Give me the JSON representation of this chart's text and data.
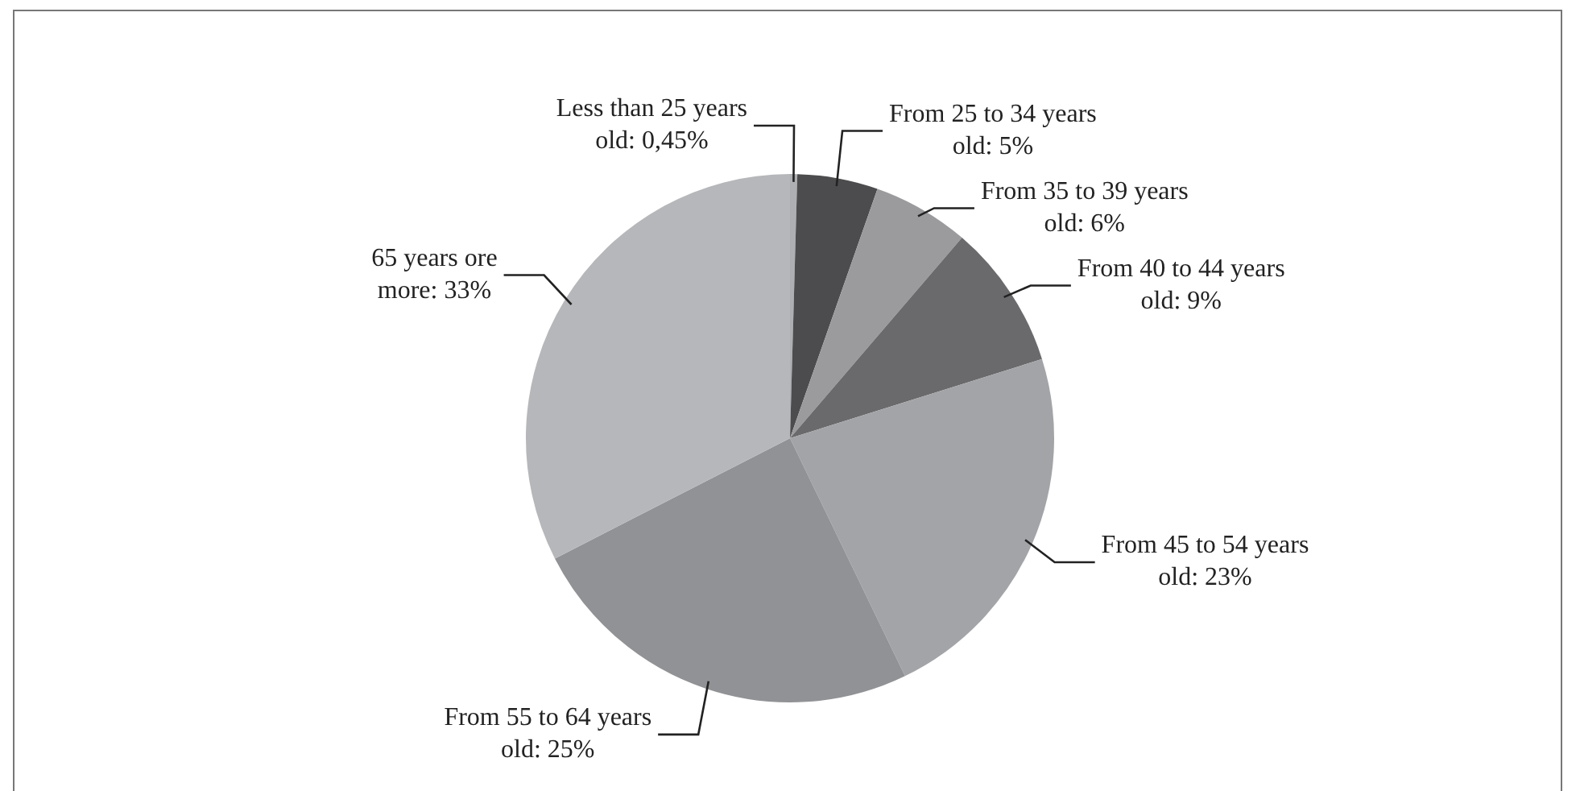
{
  "chart_data": {
    "type": "pie",
    "categories": [
      "Less than 25 years old",
      "From 25 to 34 years old",
      "From 35 to 39 years old",
      "From 40 to 44 years old",
      "From 45 to 54 years old",
      "From 55 to 64 years old",
      "65 years ore more"
    ],
    "values": [
      0.45,
      5,
      6,
      9,
      23,
      25,
      33
    ],
    "value_labels": [
      "0,45%",
      "5%",
      "6%",
      "9%",
      "23%",
      "25%",
      "33%"
    ],
    "colors": [
      "#aeafb2",
      "#4c4c4e",
      "#9b9b9e",
      "#6a6a6c",
      "#a3a4a7",
      "#919295",
      "#b6b7ba"
    ],
    "legend": false
  }
}
